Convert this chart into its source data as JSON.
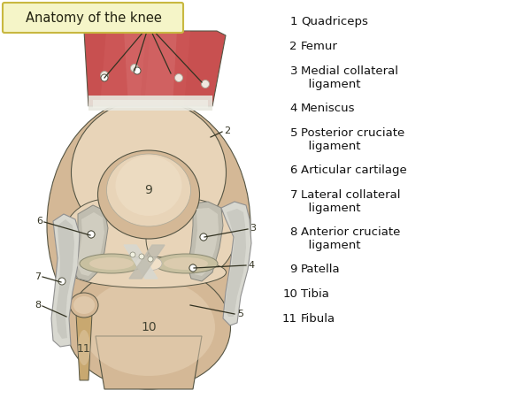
{
  "title": "Anatomy of the knee",
  "title_bg": "#f5f5c8",
  "title_border": "#c8b840",
  "bg_color": "#ffffff",
  "legend_items": [
    {
      "num": "1",
      "text": "Quadriceps"
    },
    {
      "num": "2",
      "text": "Femur"
    },
    {
      "num": "3",
      "text": "Medial collateral\n  ligament"
    },
    {
      "num": "4",
      "text": "Meniscus"
    },
    {
      "num": "5",
      "text": "Posterior cruciate\n  ligament"
    },
    {
      "num": "6",
      "text": "Articular cartilage"
    },
    {
      "num": "7",
      "text": "Lateral collateral\n  ligament"
    },
    {
      "num": "8",
      "text": "Anterior cruciate\n  ligament"
    },
    {
      "num": "9",
      "text": "Patella"
    },
    {
      "num": "10",
      "text": "Tibia"
    },
    {
      "num": "11",
      "text": "Fibula"
    }
  ],
  "colors": {
    "muscle_dark": "#c85050",
    "muscle_mid": "#d46060",
    "muscle_light": "#e08888",
    "bone_main": "#d4b896",
    "bone_light": "#e8d4b8",
    "bone_lighter": "#f0e0c8",
    "bone_dark": "#b89670",
    "cartilage_gray": "#c0bdb0",
    "cartilage_light": "#d8d5c8",
    "ligament_white": "#d8d8d0",
    "ligament_gray": "#b0b0a8",
    "line_dark": "#555544",
    "meniscus": "#c8c0a0",
    "fibula": "#c8a870"
  }
}
